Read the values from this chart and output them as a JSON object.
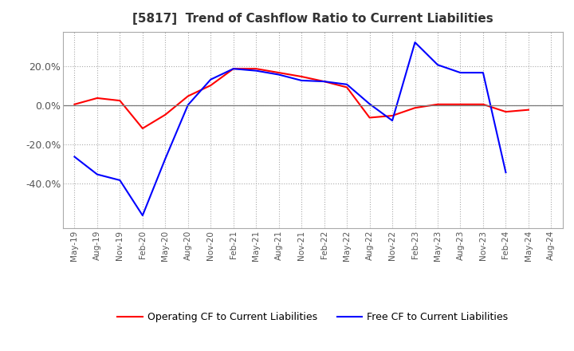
{
  "title": "[5817]  Trend of Cashflow Ratio to Current Liabilities",
  "x_labels": [
    "May-19",
    "Aug-19",
    "Nov-19",
    "Feb-20",
    "May-20",
    "Aug-20",
    "Nov-20",
    "Feb-21",
    "May-21",
    "Aug-21",
    "Nov-21",
    "Feb-22",
    "May-22",
    "Aug-22",
    "Nov-22",
    "Feb-23",
    "May-23",
    "Aug-23",
    "Nov-23",
    "Feb-24",
    "May-24",
    "Aug-24"
  ],
  "operating_cf": [
    0.003,
    0.035,
    0.022,
    -0.12,
    -0.05,
    0.045,
    0.1,
    0.185,
    0.185,
    0.165,
    0.145,
    0.12,
    0.09,
    -0.065,
    -0.055,
    -0.015,
    0.003,
    0.003,
    0.003,
    -0.035,
    -0.025,
    null
  ],
  "free_cf": [
    -0.265,
    -0.355,
    -0.385,
    -0.565,
    -0.275,
    0.0,
    0.13,
    0.185,
    0.175,
    0.155,
    0.125,
    0.12,
    0.105,
    0.005,
    -0.08,
    0.32,
    0.205,
    0.165,
    0.165,
    -0.345,
    null,
    null
  ],
  "operating_color": "#ff0000",
  "free_color": "#0000ff",
  "ylim": [
    -0.63,
    0.375
  ],
  "yticks": [
    -0.4,
    -0.2,
    0.0,
    0.2
  ],
  "background_color": "#ffffff",
  "plot_bg_color": "#ffffff",
  "grid_color": "#aaaaaa",
  "legend_labels": [
    "Operating CF to Current Liabilities",
    "Free CF to Current Liabilities"
  ]
}
